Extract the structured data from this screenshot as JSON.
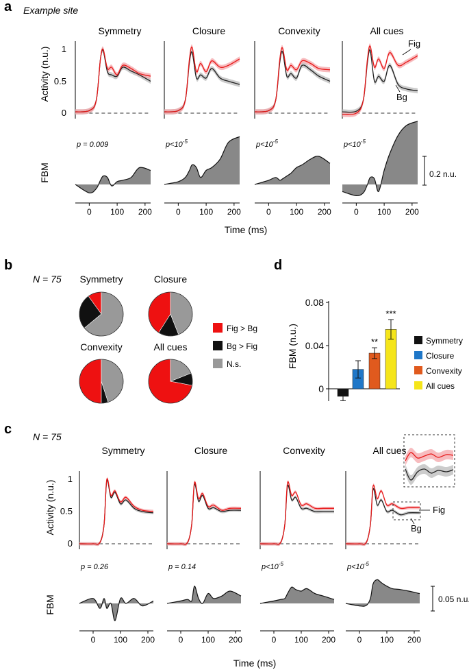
{
  "panel_a": {
    "label": "a",
    "subtitle": "Example site",
    "conditions": [
      "Symmetry",
      "Closure",
      "Convexity",
      "All cues"
    ],
    "y_label": "Activity (n.u.)",
    "y_ticks": [
      "1",
      "0.5",
      "0"
    ],
    "fig_label": "Fig",
    "bg_label": "Bg",
    "fbm_label": "FBM",
    "p_values": [
      "p = 0.009",
      "p<10-5",
      "p<10-5",
      "p<10-5"
    ],
    "scale_label": "0.2 n.u.",
    "x_ticks": [
      "0",
      "100",
      "200"
    ],
    "x_label": "Time (ms)"
  },
  "panel_b": {
    "label": "b",
    "n_label": "N = 75",
    "legend": [
      "Fig > Bg",
      "Bg > Fig",
      "N.s."
    ],
    "colors": {
      "fig": "#ee1111",
      "bg": "#111111",
      "ns": "#999999"
    },
    "pies": [
      {
        "name": "Symmetry",
        "fig": 10,
        "bg": 26,
        "ns": 64
      },
      {
        "name": "Closure",
        "fig": 41,
        "bg": 15,
        "ns": 44
      },
      {
        "name": "Convexity",
        "fig": 50,
        "bg": 5,
        "ns": 45
      },
      {
        "name": "All cues",
        "fig": 72,
        "bg": 9,
        "ns": 19
      }
    ]
  },
  "panel_c": {
    "label": "c",
    "n_label": "N = 75",
    "conditions": [
      "Symmetry",
      "Closure",
      "Convexity",
      "All cues"
    ],
    "y_label": "Activity (n.u.)",
    "y_ticks": [
      "1",
      "0.5",
      "0"
    ],
    "fig_label": "Fig",
    "bg_label": "Bg",
    "fbm_label": "FBM",
    "p_values": [
      "p = 0.26",
      "p = 0.14",
      "p<10-5",
      "p<10-5"
    ],
    "scale_label": "0.05 n.u.",
    "x_ticks": [
      "0",
      "100",
      "200"
    ],
    "x_label": "Time (ms)"
  },
  "chart_data": [
    {
      "type": "bar",
      "panel": "d",
      "title": "",
      "xlabel": "",
      "ylabel": "FBM (n.u.)",
      "categories": [
        "Symmetry",
        "Closure",
        "Convexity",
        "All cues"
      ],
      "values": [
        -0.007,
        0.018,
        0.033,
        0.055
      ],
      "errors": [
        0.004,
        0.008,
        0.005,
        0.009
      ],
      "significance": [
        "",
        "",
        "**",
        "***"
      ],
      "colors": [
        "#111111",
        "#1f77c8",
        "#e05a1e",
        "#f5e51a"
      ],
      "yticks": [
        "0.08",
        "0.04",
        "0"
      ],
      "ylim": [
        -0.012,
        0.08
      ]
    },
    {
      "type": "line",
      "panel": "a",
      "title": "Example site",
      "xlabel": "Time (ms)",
      "ylabel": "Activity (n.u.)",
      "x": [
        -50,
        0,
        25,
        40,
        50,
        65,
        80,
        100,
        120,
        150,
        180,
        220
      ],
      "series": [
        {
          "name": "Symmetry Fig",
          "values": [
            0.02,
            0.04,
            0.2,
            0.85,
            1.0,
            0.7,
            0.72,
            0.6,
            0.75,
            0.7,
            0.62,
            0.58
          ]
        },
        {
          "name": "Symmetry Bg",
          "values": [
            0.02,
            0.04,
            0.2,
            0.85,
            0.98,
            0.65,
            0.6,
            0.58,
            0.72,
            0.66,
            0.6,
            0.5
          ]
        },
        {
          "name": "Closure Fig",
          "values": [
            0.02,
            0.04,
            0.2,
            0.85,
            1.03,
            0.65,
            0.78,
            0.65,
            0.82,
            0.72,
            0.75,
            0.85
          ]
        },
        {
          "name": "Closure Bg",
          "values": [
            0.02,
            0.04,
            0.2,
            0.8,
            0.95,
            0.55,
            0.6,
            0.55,
            0.7,
            0.55,
            0.5,
            0.45
          ]
        },
        {
          "name": "Convexity Fig",
          "values": [
            0.02,
            0.04,
            0.2,
            0.85,
            1.02,
            0.68,
            0.75,
            0.68,
            0.82,
            0.78,
            0.7,
            0.68
          ]
        },
        {
          "name": "Convexity Bg",
          "values": [
            0.02,
            0.04,
            0.2,
            0.8,
            0.96,
            0.58,
            0.62,
            0.55,
            0.75,
            0.68,
            0.58,
            0.5
          ]
        },
        {
          "name": "All cues Fig",
          "values": [
            -0.02,
            0.0,
            0.2,
            0.85,
            1.05,
            0.72,
            0.85,
            0.7,
            0.95,
            0.75,
            0.8,
            0.9
          ]
        },
        {
          "name": "All cues Bg",
          "values": [
            0.02,
            0.03,
            0.2,
            0.8,
            0.98,
            0.5,
            0.58,
            0.5,
            0.75,
            0.45,
            0.38,
            0.35
          ]
        }
      ]
    },
    {
      "type": "area",
      "panel": "a",
      "title": "FBM",
      "xlabel": "Time (ms)",
      "ylabel": "FBM",
      "scale": "0.2 n.u.",
      "x": [
        -50,
        0,
        25,
        40,
        50,
        65,
        80,
        100,
        120,
        150,
        180,
        220
      ],
      "series": [
        {
          "name": "Symmetry",
          "values": [
            0.0,
            -0.06,
            -0.03,
            0.03,
            0.06,
            0.05,
            -0.01,
            0.02,
            0.03,
            0.05,
            0.12,
            0.1
          ]
        },
        {
          "name": "Closure",
          "values": [
            0.0,
            0.02,
            0.05,
            0.1,
            0.14,
            0.12,
            0.05,
            0.1,
            0.12,
            0.18,
            0.3,
            0.34
          ]
        },
        {
          "name": "Convexity",
          "values": [
            0.0,
            0.03,
            0.05,
            0.03,
            0.04,
            0.06,
            0.08,
            0.12,
            0.14,
            0.18,
            0.2,
            0.15
          ]
        },
        {
          "name": "All cues",
          "values": [
            -0.05,
            -0.08,
            -0.06,
            0.0,
            0.05,
            0.04,
            -0.05,
            0.1,
            0.22,
            0.35,
            0.42,
            0.45
          ]
        }
      ]
    },
    {
      "type": "line",
      "panel": "c",
      "title": "N = 75",
      "xlabel": "Time (ms)",
      "ylabel": "Activity (n.u.)",
      "x": [
        -50,
        0,
        25,
        40,
        50,
        65,
        80,
        100,
        120,
        150,
        180,
        220
      ],
      "series": [
        {
          "name": "Symmetry Fig",
          "values": [
            0.0,
            0.0,
            0.02,
            0.3,
            1.0,
            0.75,
            0.82,
            0.65,
            0.72,
            0.58,
            0.52,
            0.5
          ]
        },
        {
          "name": "Symmetry Bg",
          "values": [
            0.0,
            0.0,
            0.02,
            0.3,
            0.98,
            0.72,
            0.8,
            0.62,
            0.68,
            0.55,
            0.5,
            0.48
          ]
        },
        {
          "name": "Closure Fig",
          "values": [
            0.0,
            0.0,
            0.02,
            0.3,
            0.95,
            0.7,
            0.78,
            0.58,
            0.6,
            0.52,
            0.55,
            0.55
          ]
        },
        {
          "name": "Closure Bg",
          "values": [
            0.0,
            0.0,
            0.02,
            0.3,
            0.92,
            0.66,
            0.75,
            0.55,
            0.56,
            0.5,
            0.52,
            0.52
          ]
        },
        {
          "name": "Convexity Fig",
          "values": [
            0.0,
            0.0,
            0.02,
            0.3,
            0.95,
            0.75,
            0.8,
            0.6,
            0.62,
            0.55,
            0.55,
            0.55
          ]
        },
        {
          "name": "Convexity Bg",
          "values": [
            0.0,
            0.0,
            0.02,
            0.3,
            0.9,
            0.68,
            0.72,
            0.55,
            0.55,
            0.5,
            0.5,
            0.5
          ]
        },
        {
          "name": "All cues Fig",
          "values": [
            0.0,
            0.0,
            0.02,
            0.3,
            0.9,
            0.7,
            0.82,
            0.6,
            0.62,
            0.55,
            0.56,
            0.56
          ]
        },
        {
          "name": "All cues Bg",
          "values": [
            0.0,
            0.0,
            0.02,
            0.3,
            0.85,
            0.6,
            0.68,
            0.5,
            0.52,
            0.45,
            0.48,
            0.48
          ]
        }
      ]
    },
    {
      "type": "area",
      "panel": "c",
      "title": "FBM",
      "xlabel": "Time (ms)",
      "ylabel": "FBM",
      "scale": "0.05 n.u.",
      "x": [
        -50,
        0,
        25,
        40,
        50,
        65,
        80,
        100,
        120,
        150,
        180,
        220
      ],
      "series": [
        {
          "name": "Symmetry",
          "values": [
            0.0,
            0.01,
            -0.01,
            0.01,
            -0.01,
            0.0,
            -0.035,
            0.01,
            0.0,
            0.01,
            -0.005,
            0.005
          ]
        },
        {
          "name": "Closure",
          "values": [
            0.0,
            0.005,
            0.008,
            0.005,
            0.035,
            0.01,
            0.0,
            0.02,
            0.01,
            0.015,
            0.025,
            0.015
          ]
        },
        {
          "name": "Convexity",
          "values": [
            0.0,
            0.005,
            0.008,
            0.01,
            0.02,
            0.033,
            0.028,
            0.025,
            0.03,
            0.02,
            0.015,
            0.008
          ]
        },
        {
          "name": "All cues",
          "values": [
            0.0,
            -0.005,
            -0.004,
            0.01,
            0.04,
            0.048,
            0.042,
            0.035,
            0.03,
            0.028,
            0.025,
            0.02
          ]
        }
      ]
    }
  ]
}
